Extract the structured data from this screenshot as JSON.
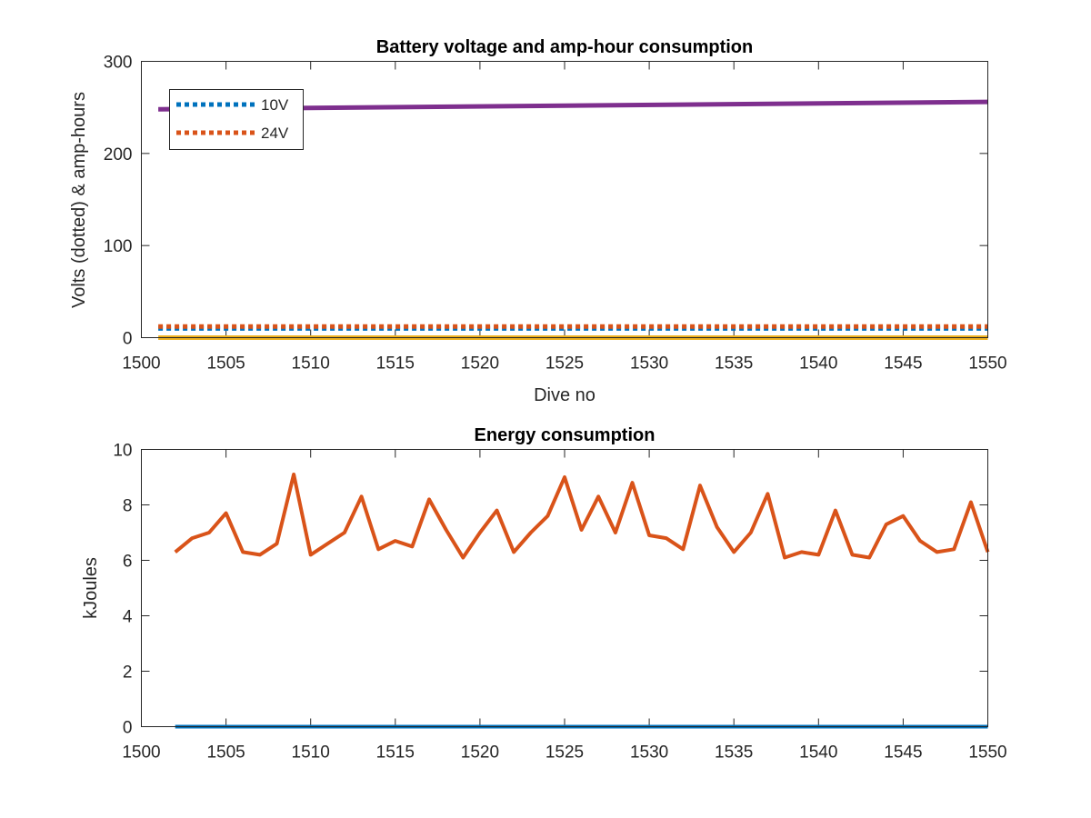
{
  "chart_data": [
    {
      "type": "line",
      "title": "Battery voltage and amp-hour consumption",
      "xlabel": "Dive no",
      "ylabel": "Volts (dotted) & amp-hours",
      "xlim": [
        1500,
        1550
      ],
      "ylim": [
        0,
        300
      ],
      "xticks": [
        1500,
        1505,
        1510,
        1515,
        1520,
        1525,
        1530,
        1535,
        1540,
        1545,
        1550
      ],
      "yticks": [
        0,
        100,
        200,
        300
      ],
      "grid": false,
      "legend": {
        "placement": "top-left",
        "entries": [
          "10V",
          "24V"
        ]
      },
      "series": [
        {
          "name": "10V",
          "style": "dotted",
          "color": "#0072BD",
          "x": [
            1501,
            1550
          ],
          "values": [
            10,
            10
          ]
        },
        {
          "name": "24V",
          "style": "dotted",
          "color": "#D95319",
          "x": [
            1501,
            1550
          ],
          "values": [
            12,
            12
          ]
        },
        {
          "style": "solid",
          "color": "#EDB120",
          "x": [
            1501,
            1550
          ],
          "values": [
            0,
            0
          ]
        },
        {
          "style": "solid",
          "color": "#7E2F8E",
          "x": [
            1501,
            1550
          ],
          "values": [
            248,
            256
          ]
        }
      ]
    },
    {
      "type": "line",
      "title": "Energy consumption",
      "xlabel": "",
      "ylabel": "kJoules",
      "xlim": [
        1500,
        1550
      ],
      "ylim": [
        0,
        10
      ],
      "xticks": [
        1500,
        1505,
        1510,
        1515,
        1520,
        1525,
        1530,
        1535,
        1540,
        1545,
        1550
      ],
      "yticks": [
        0,
        2,
        4,
        6,
        8,
        10
      ],
      "grid": false,
      "series": [
        {
          "style": "solid",
          "color": "#0072BD",
          "x": [
            1502,
            1550
          ],
          "values": [
            0,
            0
          ]
        },
        {
          "style": "solid",
          "color": "#D95319",
          "x": [
            1502,
            1503,
            1504,
            1505,
            1506,
            1507,
            1508,
            1509,
            1510,
            1511,
            1512,
            1513,
            1514,
            1515,
            1516,
            1517,
            1518,
            1519,
            1520,
            1521,
            1522,
            1523,
            1524,
            1525,
            1526,
            1527,
            1528,
            1529,
            1530,
            1531,
            1532,
            1533,
            1534,
            1535,
            1536,
            1537,
            1538,
            1539,
            1540,
            1541,
            1542,
            1543,
            1544,
            1545,
            1546,
            1547,
            1548,
            1549,
            1550
          ],
          "values": [
            6.3,
            6.8,
            7.0,
            7.7,
            6.3,
            6.2,
            6.6,
            9.1,
            6.2,
            6.6,
            7.0,
            8.3,
            6.4,
            6.7,
            6.5,
            8.2,
            7.1,
            6.1,
            7.0,
            7.8,
            6.3,
            7.0,
            7.6,
            9.0,
            7.1,
            8.3,
            7.0,
            8.8,
            6.9,
            6.8,
            6.4,
            8.7,
            7.2,
            6.3,
            7.0,
            8.4,
            6.1,
            6.3,
            6.2,
            7.8,
            6.2,
            6.1,
            7.3,
            7.6,
            6.7,
            6.3,
            6.4,
            8.1,
            6.3
          ]
        }
      ]
    }
  ]
}
